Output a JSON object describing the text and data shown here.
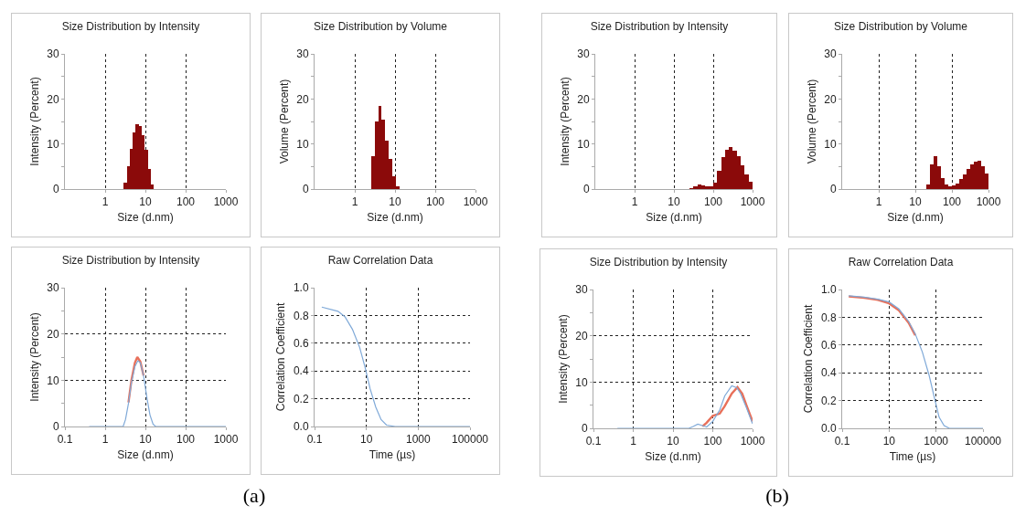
{
  "chart_data": [
    {
      "type": "histogram",
      "title": "Size Distribution by Intensity",
      "xlabel": "Size (d.nm)",
      "ylabel": "Intensity (Percent)",
      "log": "x",
      "grid": "x",
      "xlim": [
        0.1,
        1000
      ],
      "xticks": [
        1,
        10,
        100,
        1000
      ],
      "ylim": [
        0,
        30
      ],
      "yticks": [
        0,
        {
          "value": 5,
          "label": null
        },
        10,
        {
          "value": 15,
          "label": null
        },
        20,
        {
          "value": 25,
          "label": null
        },
        30
      ],
      "color": "#8b0a0a",
      "bins": [
        2.88,
        3.43,
        4.07,
        4.84,
        5.75,
        6.84,
        8.13,
        9.66,
        11.5,
        13.6,
        16.2
      ],
      "values": [
        1.5,
        5,
        9,
        12.5,
        14.3,
        14,
        12,
        8.8,
        4.5,
        1
      ]
    },
    {
      "type": "histogram",
      "title": "Size Distribution by Volume",
      "xlabel": "Size (d.nm)",
      "ylabel": "Volume (Percent)",
      "log": "x",
      "grid": "x",
      "xlim": [
        0.1,
        1000
      ],
      "xticks": [
        1,
        10,
        100,
        1000
      ],
      "ylim": [
        0,
        30
      ],
      "yticks": [
        0,
        {
          "value": 5,
          "label": null
        },
        10,
        {
          "value": 15,
          "label": null
        },
        20,
        {
          "value": 25,
          "label": null
        },
        30
      ],
      "color": "#8b0a0a",
      "bins": [
        2.51,
        3.09,
        3.8,
        4.68,
        5.75,
        7.08,
        8.71,
        10.7,
        13.2
      ],
      "values": [
        7.3,
        14.9,
        18.4,
        15.5,
        10.7,
        6.6,
        2.9,
        0.7
      ]
    },
    {
      "type": "line",
      "title": "Size Distribution by Intensity",
      "xlabel": "Size (d.nm)",
      "ylabel": "Intensity (Percent)",
      "log": "x",
      "grid": true,
      "xlim": [
        0.1,
        1000
      ],
      "xticks": [
        0.1,
        1,
        10,
        100,
        1000
      ],
      "ylim": [
        0,
        30
      ],
      "yticks": [
        0,
        {
          "value": 5,
          "label": null
        },
        10,
        {
          "value": 15,
          "label": null
        },
        20,
        {
          "value": 25,
          "label": null
        },
        30
      ],
      "series": [
        {
          "color": "#e8705a",
          "x": [
            3.8,
            4.5,
            5.5,
            6.3,
            7.5,
            9
          ],
          "values": [
            5.2,
            10,
            13.8,
            15,
            14,
            11
          ]
        },
        {
          "color": "#7fa9d8",
          "x": [
            0.4,
            1,
            2,
            2.8,
            3.2,
            3.8,
            4.5,
            5.5,
            6.5,
            7.5,
            9,
            11,
            13,
            15.5,
            18,
            50,
            100,
            1000
          ],
          "values": [
            0,
            0,
            0,
            0,
            1.5,
            5,
            9.5,
            13,
            14.2,
            13.8,
            11,
            6,
            2.5,
            0.5,
            0,
            0,
            0,
            0
          ]
        }
      ]
    },
    {
      "type": "line",
      "title": "Raw Correlation Data",
      "xlabel": "Time (µs)",
      "ylabel": "Correlation Coefficient",
      "log": "x",
      "grid": true,
      "xlim": [
        0.1,
        100000
      ],
      "xticks": [
        0.1,
        10,
        1000,
        100000
      ],
      "ylim": [
        0,
        1
      ],
      "yticks": [
        {
          "value": 0,
          "label": "0.0"
        },
        0.2,
        0.4,
        0.6,
        0.8,
        {
          "value": 1,
          "label": "1.0"
        }
      ],
      "annotations": [
        "(a)"
      ],
      "series": [
        {
          "color": "#7fa9d8",
          "x": [
            0.19,
            0.8,
            1.5,
            2.9,
            5.5,
            8.8,
            14,
            23,
            37,
            60,
            130,
            1000,
            10000,
            100000
          ],
          "values": [
            0.86,
            0.83,
            0.79,
            0.7,
            0.57,
            0.43,
            0.27,
            0.14,
            0.05,
            0.01,
            0,
            0,
            0,
            0
          ]
        }
      ]
    },
    {
      "type": "histogram",
      "title": "Size Distribution by Intensity",
      "xlabel": "Size (d.nm)",
      "ylabel": "Intensity (Percent)",
      "log": "x",
      "grid": "x",
      "xlim": [
        0.1,
        1000
      ],
      "xticks": [
        1,
        10,
        100,
        1000
      ],
      "ylim": [
        0,
        30
      ],
      "yticks": [
        0,
        {
          "value": 5,
          "label": null
        },
        10,
        {
          "value": 15,
          "label": null
        },
        20,
        {
          "value": 25,
          "label": null
        },
        30
      ],
      "color": "#8b0a0a",
      "bins": [
        25.1,
        31.6,
        39.8,
        50.1,
        63.1,
        79.4,
        100,
        126,
        158,
        200,
        251,
        316,
        398,
        501,
        631,
        794,
        1000
      ],
      "values": [
        0.3,
        0.7,
        1,
        0.9,
        0.7,
        0.6,
        1.5,
        4,
        7,
        8.8,
        9.3,
        8.6,
        7.2,
        5.3,
        3.3,
        1.7
      ]
    },
    {
      "type": "histogram",
      "title": "Size Distribution by Volume",
      "xlabel": "Size (d.nm)",
      "ylabel": "Volume (Percent)",
      "log": "x",
      "grid": "x",
      "xlim": [
        0.1,
        1000
      ],
      "xticks": [
        1,
        10,
        100,
        1000
      ],
      "ylim": [
        0,
        30
      ],
      "yticks": [
        0,
        {
          "value": 5,
          "label": null
        },
        10,
        {
          "value": 15,
          "label": null
        },
        20,
        {
          "value": 25,
          "label": null
        },
        30
      ],
      "color": "#8b0a0a",
      "bins": [
        20,
        25.1,
        31.6,
        39.8,
        50.1,
        63.1,
        79.4,
        100,
        126,
        158,
        200,
        251,
        316,
        398,
        501,
        631,
        794,
        1000
      ],
      "values": [
        1,
        5.5,
        7.2,
        5,
        2.5,
        1,
        0.7,
        0.8,
        1.3,
        2.2,
        3.3,
        4.4,
        5.4,
        6.1,
        6.2,
        5,
        3.5
      ]
    },
    {
      "type": "line",
      "title": "Size Distribution by Intensity",
      "xlabel": "Size (d.nm)",
      "ylabel": "Intensity (Percent)",
      "log": "x",
      "grid": true,
      "xlim": [
        0.1,
        1000
      ],
      "xticks": [
        0.1,
        1,
        10,
        100,
        1000
      ],
      "ylim": [
        0,
        30
      ],
      "yticks": [
        0,
        {
          "value": 5,
          "label": null
        },
        10,
        {
          "value": 15,
          "label": null
        },
        20,
        {
          "value": 25,
          "label": null
        },
        30
      ],
      "series": [
        {
          "color": "#e8705a",
          "x": [
            55,
            70,
            100,
            150,
            200,
            300,
            417,
            550,
            700,
            1000
          ],
          "values": [
            0.4,
            1.2,
            2.7,
            3.2,
            4.8,
            7.5,
            8.9,
            7.5,
            5,
            1.5
          ]
        },
        {
          "color": "#7fa9d8",
          "x": [
            0.4,
            1,
            10,
            25,
            32,
            42,
            55,
            70,
            100,
            150,
            200,
            300,
            400,
            500,
            700,
            1000
          ],
          "values": [
            0,
            0,
            0,
            0,
            0.4,
            0.9,
            0.6,
            0.3,
            1.5,
            4,
            7,
            9.2,
            8.8,
            7.5,
            4.5,
            1
          ]
        }
      ]
    },
    {
      "type": "line",
      "title": "Raw Correlation Data",
      "xlabel": "Time (µs)",
      "ylabel": "Correlation Coefficient",
      "log": "x",
      "grid": true,
      "xlim": [
        0.1,
        100000
      ],
      "xticks": [
        0.1,
        10,
        1000,
        100000
      ],
      "ylim": [
        0,
        1
      ],
      "yticks": [
        {
          "value": 0,
          "label": "0.0"
        },
        0.2,
        0.4,
        0.6,
        0.8,
        {
          "value": 1,
          "label": "1.0"
        }
      ],
      "annotations": [
        "(b)"
      ],
      "series": [
        {
          "color": "#e8705a",
          "x": [
            0.19,
            0.87,
            3.3,
            10,
            26,
            68,
            130
          ],
          "values": [
            0.95,
            0.94,
            0.925,
            0.9,
            0.85,
            0.76,
            0.67
          ]
        },
        {
          "color": "#7fa9d8",
          "x": [
            0.19,
            0.87,
            3.3,
            10,
            26,
            68,
            130,
            260,
            510,
            850,
            1350,
            2200,
            3700,
            10000,
            100000
          ],
          "values": [
            0.955,
            0.945,
            0.93,
            0.91,
            0.86,
            0.77,
            0.68,
            0.55,
            0.38,
            0.22,
            0.08,
            0.02,
            0,
            0,
            0
          ]
        }
      ]
    }
  ]
}
